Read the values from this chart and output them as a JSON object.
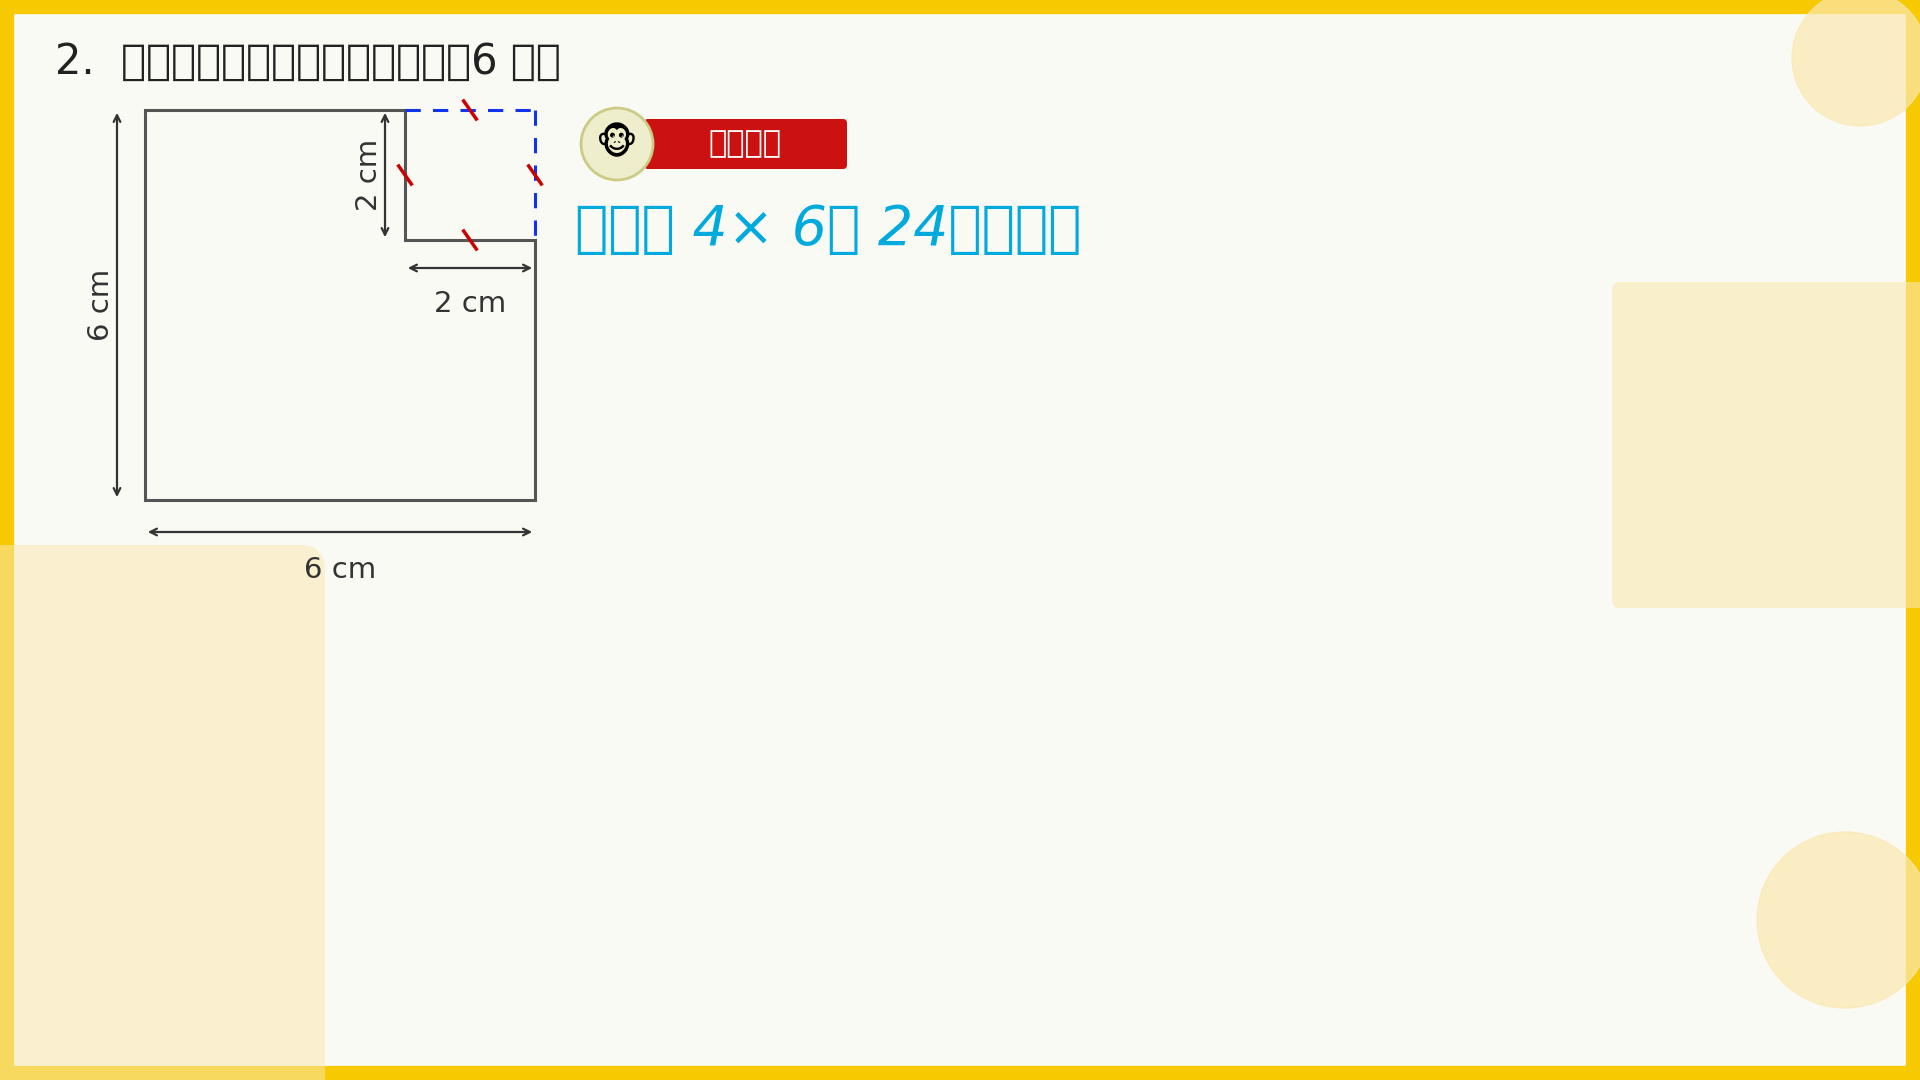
{
  "bg_color": "#FFFFFF",
  "border_color": "#F7C900",
  "title_text": "2.  计算下面图形的周长和面积。（6 分）",
  "solution_text": "周长＝ 4× 6＝ 24（厘米）",
  "shape_color": "#555555",
  "dashed_color": "#1133EE",
  "tick_color": "#CC0000",
  "dim_6cm_v": "6 cm",
  "dim_2cm_v": "2 cm",
  "dim_2cm_h": "2 cm",
  "dim_6cm_h": "6 cm",
  "decoration_color": "#FAE8B0",
  "badge_red": "#CC1111",
  "badge_text": "解题过程",
  "solution_color": "#00AADD",
  "card_bg": "#FAFAF5",
  "ox": 145,
  "oy": 110,
  "scale": 65
}
